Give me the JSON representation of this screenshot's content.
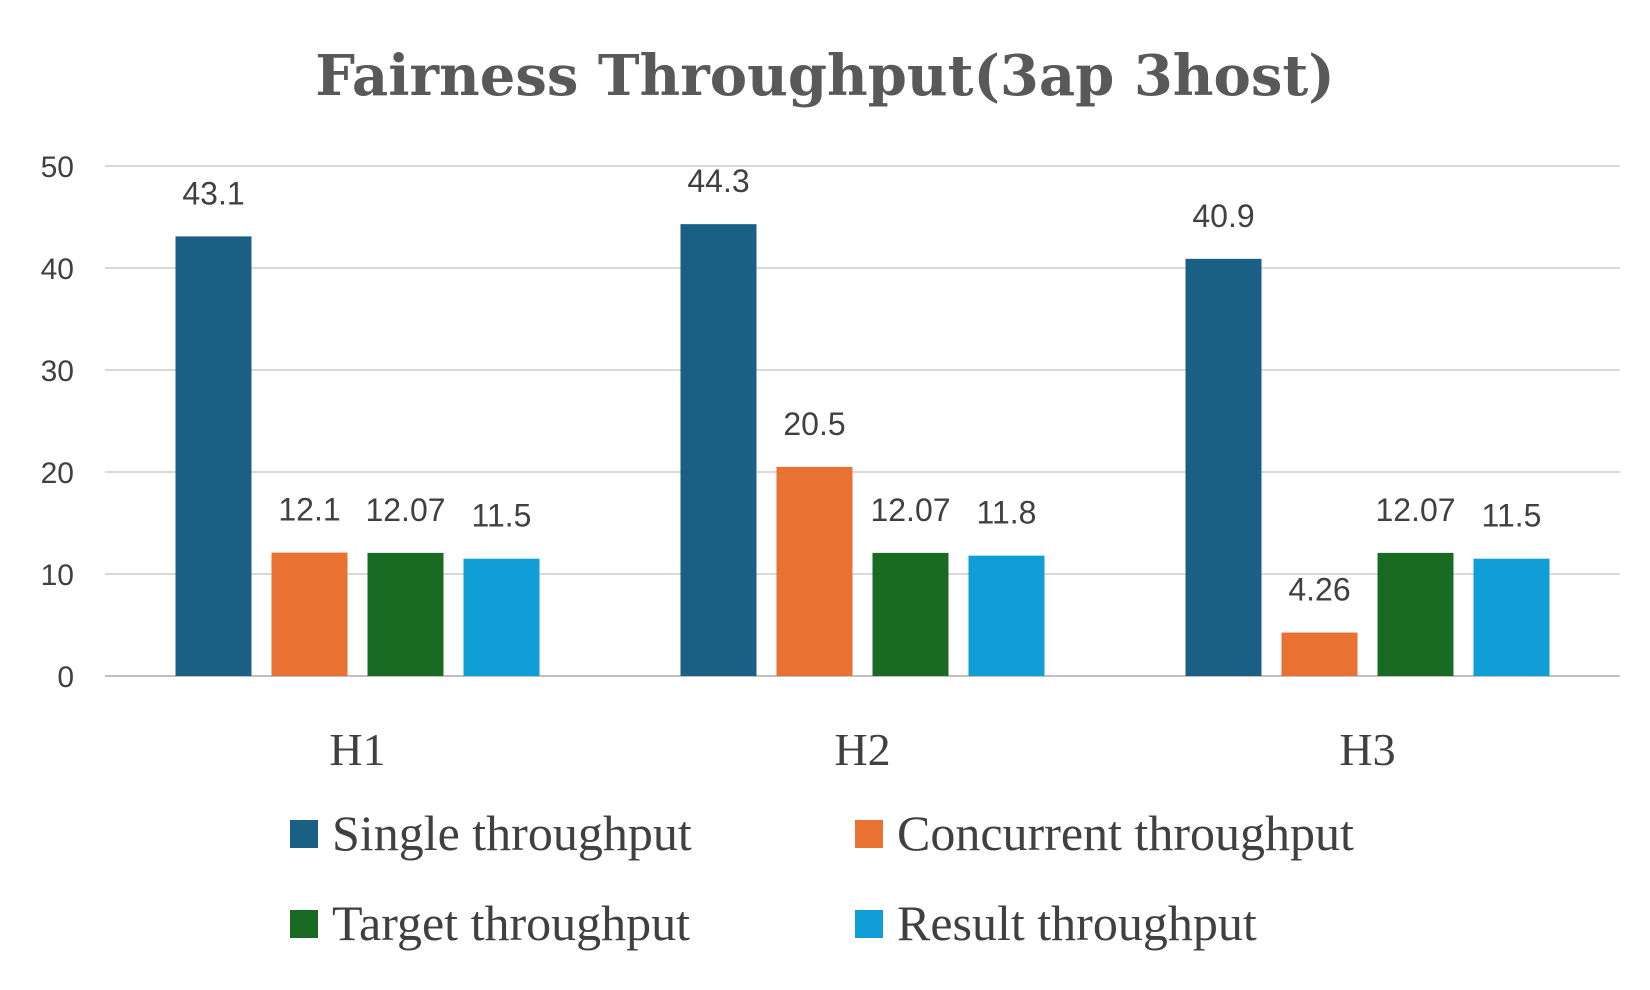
{
  "chart_data": {
    "type": "bar",
    "title": "Fairness Throughput(3ap 3host)",
    "xlabel": "",
    "ylabel": "",
    "ylim": [
      0,
      50
    ],
    "yticks": [
      0,
      10,
      20,
      30,
      40,
      50
    ],
    "grid": true,
    "legend_position": "bottom",
    "categories": [
      "H1",
      "H2",
      "H3"
    ],
    "series": [
      {
        "name": "Single throughput",
        "color": "#1a5f84",
        "values": [
          43.1,
          44.3,
          40.9
        ],
        "labels": [
          "43.1",
          "44.3",
          "40.9"
        ]
      },
      {
        "name": "Concurrent throughput",
        "color": "#e97132",
        "values": [
          12.1,
          20.5,
          4.26
        ],
        "labels": [
          "12.1",
          "20.5",
          "4.26"
        ]
      },
      {
        "name": "Target throughput",
        "color": "#196b24",
        "values": [
          12.07,
          12.07,
          12.07
        ],
        "labels": [
          "12.07",
          "12.07",
          "12.07"
        ]
      },
      {
        "name": "Result throughput",
        "color": "#0f9ed5",
        "values": [
          11.5,
          11.8,
          11.5
        ],
        "labels": [
          "11.5",
          "11.8",
          "11.5"
        ]
      }
    ]
  }
}
